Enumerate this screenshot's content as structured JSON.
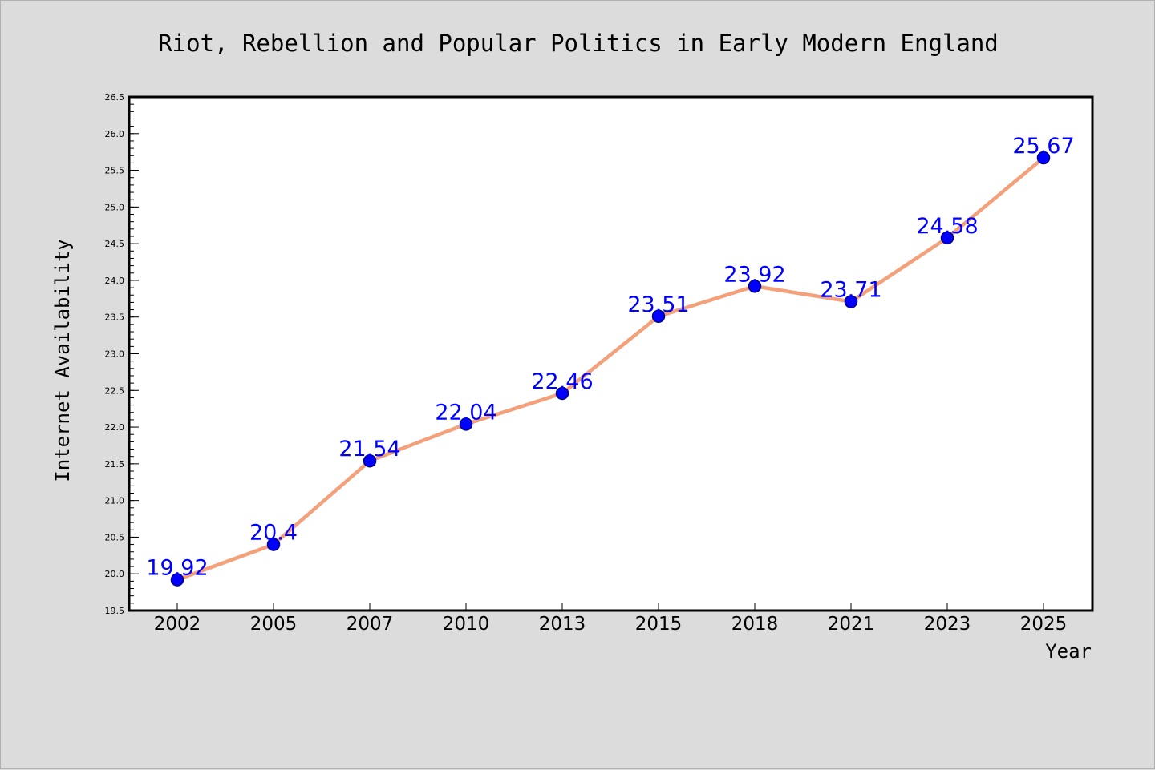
{
  "chart_data": {
    "type": "line",
    "title": "Riot, Rebellion and Popular Politics in Early Modern England",
    "xlabel": "Year",
    "ylabel": "Internet Availability",
    "categories": [
      "2002",
      "2005",
      "2007",
      "2010",
      "2013",
      "2015",
      "2018",
      "2021",
      "2023",
      "2025"
    ],
    "values": [
      19.92,
      20.4,
      21.54,
      22.04,
      22.46,
      23.51,
      23.92,
      23.71,
      24.58,
      25.67
    ],
    "data_labels": [
      "19.92",
      "20.4",
      "21.54",
      "22.04",
      "22.46",
      "23.51",
      "23.92",
      "23.71",
      "24.58",
      "25.67"
    ],
    "ylim": [
      19.5,
      26.5
    ],
    "yticks": [
      "19.5",
      "20.0",
      "20.5",
      "21.0",
      "21.5",
      "22.0",
      "22.5",
      "23.0",
      "23.5",
      "24.0",
      "24.5",
      "25.0",
      "25.5",
      "26.0",
      "26.5"
    ],
    "grid": false,
    "legend": "none",
    "colors": {
      "line": "#f4a07a",
      "marker": "#0000ff",
      "marker_edge": "#00008b",
      "label": "#0000ff",
      "plot_bg": "#ffffff",
      "page_bg": "#dcdcdc"
    }
  }
}
